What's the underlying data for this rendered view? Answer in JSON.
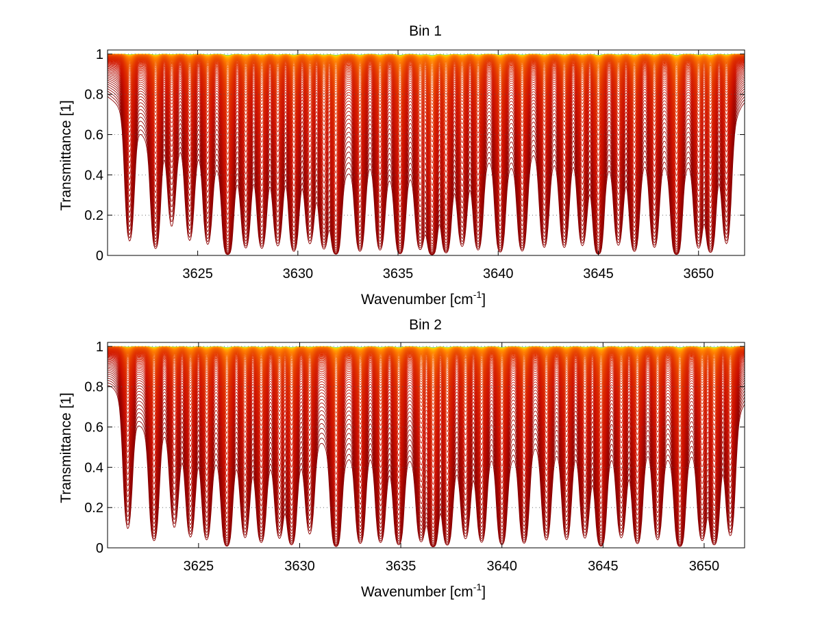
{
  "figure": {
    "background": "#ffffff"
  },
  "chart_data": [
    {
      "type": "line",
      "title": "Bin 1",
      "xlabel": "Wavenumber [cm",
      "xlabel_sup": "-1",
      "xlabel_end": "]",
      "ylabel": "Transmittance [1]",
      "xlim": [
        3620.5,
        3652.3
      ],
      "ylim": [
        0,
        1.02
      ],
      "xticks": [
        3625,
        3630,
        3635,
        3640,
        3645,
        3650
      ],
      "xtick_labels": [
        "3625",
        "3630",
        "3635",
        "3640",
        "3645",
        "3650"
      ],
      "yticks": [
        0,
        0.2,
        0.4,
        0.6,
        0.8,
        1
      ],
      "ytick_labels": [
        "0",
        "0.2",
        "0.4",
        "0.6",
        "0.8",
        "1"
      ],
      "grid": "dotted",
      "series_count": 90,
      "colormap": [
        "#8b0000",
        "#cc1100",
        "#e03000",
        "#f05a00",
        "#ff8000",
        "#ffb000",
        "#f0e000",
        "#80e060",
        "#20d0c0"
      ],
      "absorption_lines": [
        {
          "x": 3621.6,
          "depth": 0.8
        },
        {
          "x": 3622.9,
          "depth": 1.0
        },
        {
          "x": 3623.7,
          "depth": 0.5
        },
        {
          "x": 3624.6,
          "depth": 0.7
        },
        {
          "x": 3625.5,
          "depth": 0.8
        },
        {
          "x": 3626.5,
          "depth": 1.6
        },
        {
          "x": 3627.4,
          "depth": 0.9
        },
        {
          "x": 3628.2,
          "depth": 0.9
        },
        {
          "x": 3629.0,
          "depth": 0.8
        },
        {
          "x": 3629.8,
          "depth": 1.1
        },
        {
          "x": 3630.6,
          "depth": 0.7
        },
        {
          "x": 3631.3,
          "depth": 0.9
        },
        {
          "x": 3631.9,
          "depth": 1.5
        },
        {
          "x": 3633.1,
          "depth": 1.1
        },
        {
          "x": 3634.1,
          "depth": 1.0
        },
        {
          "x": 3635.1,
          "depth": 1.4
        },
        {
          "x": 3636.1,
          "depth": 0.9
        },
        {
          "x": 3636.7,
          "depth": 1.6
        },
        {
          "x": 3637.4,
          "depth": 1.2
        },
        {
          "x": 3638.2,
          "depth": 0.8
        },
        {
          "x": 3639.0,
          "depth": 1.0
        },
        {
          "x": 3640.1,
          "depth": 1.2
        },
        {
          "x": 3641.2,
          "depth": 1.1
        },
        {
          "x": 3642.3,
          "depth": 0.9
        },
        {
          "x": 3643.3,
          "depth": 0.9
        },
        {
          "x": 3644.2,
          "depth": 0.8
        },
        {
          "x": 3645.0,
          "depth": 1.5
        },
        {
          "x": 3646.0,
          "depth": 0.8
        },
        {
          "x": 3646.8,
          "depth": 1.1
        },
        {
          "x": 3647.8,
          "depth": 0.9
        },
        {
          "x": 3648.9,
          "depth": 1.6
        },
        {
          "x": 3650.0,
          "depth": 0.9
        },
        {
          "x": 3650.6,
          "depth": 1.2
        },
        {
          "x": 3651.4,
          "depth": 0.8
        }
      ]
    },
    {
      "type": "line",
      "title": "Bin 2",
      "xlabel": "Wavenumber [cm",
      "xlabel_sup": "-1",
      "xlabel_end": "]",
      "ylabel": "Transmittance [1]",
      "xlim": [
        3620.5,
        3652.0
      ],
      "ylim": [
        0,
        1.02
      ],
      "xticks": [
        3625,
        3630,
        3635,
        3640,
        3645,
        3650
      ],
      "xtick_labels": [
        "3625",
        "3630",
        "3635",
        "3640",
        "3645",
        "3650"
      ],
      "yticks": [
        0,
        0.2,
        0.4,
        0.6,
        0.8,
        1
      ],
      "ytick_labels": [
        "0",
        "0.2",
        "0.4",
        "0.6",
        "0.8",
        "1"
      ],
      "grid": "dotted",
      "series_count": 90,
      "colormap": [
        "#8b0000",
        "#cc1100",
        "#e03000",
        "#f05a00",
        "#ff8000",
        "#ffb000",
        "#f0e000",
        "#80e060",
        "#20d0c0"
      ],
      "absorption_lines": [
        {
          "x": 3621.5,
          "depth": 0.7
        },
        {
          "x": 3622.8,
          "depth": 1.0
        },
        {
          "x": 3623.8,
          "depth": 0.6
        },
        {
          "x": 3624.6,
          "depth": 0.8
        },
        {
          "x": 3625.4,
          "depth": 0.9
        },
        {
          "x": 3626.4,
          "depth": 1.4
        },
        {
          "x": 3627.3,
          "depth": 0.8
        },
        {
          "x": 3628.1,
          "depth": 1.0
        },
        {
          "x": 3629.0,
          "depth": 0.8
        },
        {
          "x": 3629.6,
          "depth": 1.2
        },
        {
          "x": 3630.5,
          "depth": 0.7
        },
        {
          "x": 3631.8,
          "depth": 1.5
        },
        {
          "x": 3633.0,
          "depth": 1.1
        },
        {
          "x": 3634.0,
          "depth": 1.0
        },
        {
          "x": 3634.9,
          "depth": 1.2
        },
        {
          "x": 3636.0,
          "depth": 0.9
        },
        {
          "x": 3636.6,
          "depth": 1.5
        },
        {
          "x": 3637.3,
          "depth": 1.2
        },
        {
          "x": 3638.2,
          "depth": 0.8
        },
        {
          "x": 3639.0,
          "depth": 1.0
        },
        {
          "x": 3640.0,
          "depth": 1.2
        },
        {
          "x": 3641.1,
          "depth": 1.1
        },
        {
          "x": 3642.2,
          "depth": 0.9
        },
        {
          "x": 3643.2,
          "depth": 0.9
        },
        {
          "x": 3644.1,
          "depth": 0.8
        },
        {
          "x": 3644.9,
          "depth": 1.4
        },
        {
          "x": 3645.9,
          "depth": 0.8
        },
        {
          "x": 3646.7,
          "depth": 1.1
        },
        {
          "x": 3647.7,
          "depth": 0.9
        },
        {
          "x": 3648.8,
          "depth": 1.5
        },
        {
          "x": 3649.9,
          "depth": 0.9
        },
        {
          "x": 3650.5,
          "depth": 1.2
        },
        {
          "x": 3651.3,
          "depth": 0.8
        }
      ]
    }
  ]
}
